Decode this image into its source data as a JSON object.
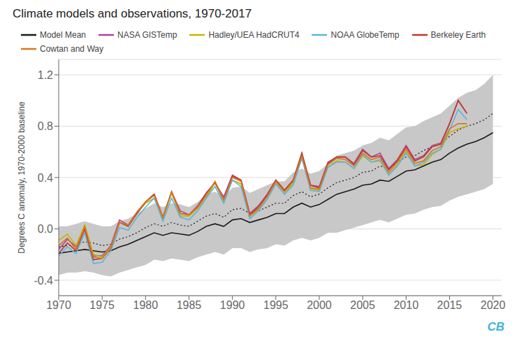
{
  "chart_data": {
    "type": "line",
    "title": "Climate models and observations, 1970-2017",
    "y_label": "Degrees C anomaly, 1970-2000 baseline",
    "xlim": [
      1970,
      2021
    ],
    "ylim": [
      -0.52,
      1.32
    ],
    "xticks": [
      1970,
      1975,
      1980,
      1985,
      1990,
      1995,
      2000,
      2005,
      2010,
      2015,
      2020
    ],
    "yticks": [
      -0.4,
      {
        "value": 0,
        "label": "0.0"
      },
      0.4,
      0.8,
      1.2
    ],
    "grid": true,
    "legend": "top left",
    "annotations": [
      {
        "text": "CB",
        "color": "#40b4d8"
      }
    ],
    "x": [
      1970,
      1971,
      1972,
      1973,
      1974,
      1975,
      1976,
      1977,
      1978,
      1979,
      1980,
      1981,
      1982,
      1983,
      1984,
      1985,
      1986,
      1987,
      1988,
      1989,
      1990,
      1991,
      1992,
      1993,
      1994,
      1995,
      1996,
      1997,
      1998,
      1999,
      2000,
      2001,
      2002,
      2003,
      2004,
      2005,
      2006,
      2007,
      2008,
      2009,
      2010,
      2011,
      2012,
      2013,
      2014,
      2015,
      2016,
      2017,
      2018,
      2019,
      2020
    ],
    "series": [
      {
        "type": "band",
        "color": "#c8c8c8",
        "lower": [
          -0.36,
          -0.34,
          -0.34,
          -0.33,
          -0.34,
          -0.36,
          -0.37,
          -0.34,
          -0.32,
          -0.3,
          -0.28,
          -0.24,
          -0.25,
          -0.23,
          -0.24,
          -0.25,
          -0.22,
          -0.2,
          -0.18,
          -0.2,
          -0.15,
          -0.15,
          -0.18,
          -0.16,
          -0.15,
          -0.12,
          -0.13,
          -0.09,
          -0.07,
          -0.09,
          -0.07,
          -0.03,
          -0.03,
          -0.01,
          0.01,
          0.03,
          0.05,
          0.07,
          0.05,
          0.08,
          0.11,
          0.12,
          0.15,
          0.17,
          0.18,
          0.22,
          0.25,
          0.27,
          0.29,
          0.31,
          0.35
        ],
        "upper": [
          0.02,
          0.02,
          0.04,
          0.06,
          0.04,
          0.02,
          0.02,
          0.06,
          0.08,
          0.12,
          0.16,
          0.2,
          0.17,
          0.2,
          0.19,
          0.17,
          0.21,
          0.27,
          0.29,
          0.25,
          0.32,
          0.33,
          0.28,
          0.31,
          0.34,
          0.37,
          0.37,
          0.44,
          0.47,
          0.43,
          0.45,
          0.51,
          0.57,
          0.59,
          0.61,
          0.65,
          0.67,
          0.71,
          0.69,
          0.74,
          0.79,
          0.8,
          0.84,
          0.87,
          0.9,
          0.96,
          1.02,
          1.06,
          1.08,
          1.13,
          1.2
        ]
      },
      {
        "color": "#1a1a1a",
        "line_style": "dotted",
        "values": [
          -0.14,
          -0.13,
          -0.12,
          -0.1,
          -0.11,
          -0.13,
          -0.12,
          -0.08,
          -0.06,
          -0.03,
          0.01,
          0.04,
          0.02,
          0.05,
          0.03,
          0.02,
          0.06,
          0.1,
          0.12,
          0.09,
          0.15,
          0.16,
          0.12,
          0.14,
          0.17,
          0.2,
          0.2,
          0.26,
          0.29,
          0.25,
          0.27,
          0.32,
          0.36,
          0.38,
          0.4,
          0.44,
          0.45,
          0.49,
          0.47,
          0.52,
          0.56,
          0.57,
          0.61,
          0.64,
          0.66,
          0.72,
          0.77,
          0.8,
          0.82,
          0.85,
          0.9
        ]
      },
      {
        "name": "Model Mean",
        "color": "#1a1a1a",
        "line_style": "solid",
        "values": [
          -0.19,
          -0.18,
          -0.17,
          -0.16,
          -0.17,
          -0.18,
          -0.17,
          -0.14,
          -0.12,
          -0.09,
          -0.06,
          -0.03,
          -0.05,
          -0.03,
          -0.04,
          -0.05,
          -0.02,
          0.02,
          0.04,
          0.02,
          0.07,
          0.08,
          0.05,
          0.07,
          0.09,
          0.12,
          0.12,
          0.17,
          0.2,
          0.17,
          0.19,
          0.23,
          0.27,
          0.29,
          0.31,
          0.34,
          0.35,
          0.38,
          0.37,
          0.41,
          0.45,
          0.46,
          0.49,
          0.52,
          0.54,
          0.59,
          0.63,
          0.66,
          0.68,
          0.71,
          0.75
        ]
      },
      {
        "name": "NASA GISTemp",
        "color": "#b040a0",
        "line_style": "solid",
        "values": [
          -0.16,
          -0.08,
          -0.14,
          0.02,
          -0.21,
          -0.21,
          -0.13,
          0.07,
          0.03,
          0.13,
          0.21,
          0.27,
          0.09,
          0.29,
          0.14,
          0.11,
          0.18,
          0.28,
          0.36,
          0.25,
          0.42,
          0.38,
          0.12,
          0.18,
          0.27,
          0.38,
          0.3,
          0.38,
          0.59,
          0.34,
          0.33,
          0.52,
          0.56,
          0.56,
          0.51,
          0.62,
          0.56,
          0.59,
          0.47,
          0.54,
          0.65,
          0.54,
          0.57,
          0.65,
          0.67,
          0.82,
          1.0,
          0.9,
          null,
          null,
          null
        ]
      },
      {
        "name": "Hadley/UEA HadCRUT4",
        "color": "#c8b400",
        "line_style": "solid",
        "values": [
          -0.09,
          -0.04,
          -0.13,
          0.03,
          -0.2,
          -0.22,
          -0.14,
          0.05,
          0.03,
          0.12,
          0.2,
          0.24,
          0.08,
          0.28,
          0.1,
          0.1,
          0.16,
          0.24,
          0.36,
          0.22,
          0.38,
          0.35,
          0.08,
          0.15,
          0.23,
          0.36,
          0.27,
          0.36,
          0.56,
          0.31,
          0.3,
          0.48,
          0.53,
          0.52,
          0.47,
          0.57,
          0.52,
          0.53,
          0.42,
          0.5,
          0.6,
          0.49,
          0.5,
          0.58,
          0.62,
          0.75,
          0.78,
          0.8,
          null,
          null,
          null
        ]
      },
      {
        "name": "NOAA GlobeTemp",
        "color": "#5ab4e0",
        "line_style": "solid",
        "values": [
          -0.21,
          -0.14,
          -0.19,
          -0.03,
          -0.27,
          -0.26,
          -0.17,
          0.01,
          -0.01,
          0.09,
          0.17,
          0.24,
          0.06,
          0.24,
          0.09,
          0.07,
          0.14,
          0.24,
          0.33,
          0.2,
          0.38,
          0.33,
          0.08,
          0.14,
          0.23,
          0.35,
          0.27,
          0.34,
          0.55,
          0.3,
          0.29,
          0.48,
          0.52,
          0.52,
          0.47,
          0.58,
          0.52,
          0.54,
          0.42,
          0.49,
          0.59,
          0.49,
          0.52,
          0.59,
          0.62,
          0.77,
          0.93,
          0.85,
          null,
          null,
          null
        ]
      },
      {
        "name": "Berkeley Earth",
        "color": "#c03828",
        "line_style": "solid",
        "values": [
          -0.19,
          -0.11,
          -0.17,
          0.0,
          -0.24,
          -0.23,
          -0.15,
          0.05,
          0.02,
          0.12,
          0.21,
          0.27,
          0.09,
          0.29,
          0.12,
          0.11,
          0.17,
          0.28,
          0.36,
          0.23,
          0.41,
          0.38,
          0.11,
          0.17,
          0.26,
          0.38,
          0.3,
          0.38,
          0.59,
          0.34,
          0.32,
          0.51,
          0.56,
          0.56,
          0.5,
          0.61,
          0.56,
          0.57,
          0.46,
          0.53,
          0.64,
          0.53,
          0.56,
          0.64,
          0.66,
          0.82,
          1.0,
          0.9,
          null,
          null,
          null
        ]
      },
      {
        "name": "Cowtan and Way",
        "color": "#d87818",
        "line_style": "solid",
        "values": [
          -0.13,
          -0.07,
          -0.16,
          0.02,
          -0.22,
          -0.23,
          -0.15,
          0.05,
          0.03,
          0.13,
          0.21,
          0.26,
          0.09,
          0.29,
          0.12,
          0.11,
          0.17,
          0.26,
          0.37,
          0.23,
          0.4,
          0.37,
          0.1,
          0.16,
          0.25,
          0.37,
          0.29,
          0.37,
          0.57,
          0.32,
          0.31,
          0.5,
          0.55,
          0.54,
          0.49,
          0.59,
          0.54,
          0.56,
          0.44,
          0.52,
          0.62,
          0.51,
          0.53,
          0.61,
          0.64,
          0.78,
          0.82,
          0.82,
          null,
          null,
          null
        ]
      }
    ]
  }
}
